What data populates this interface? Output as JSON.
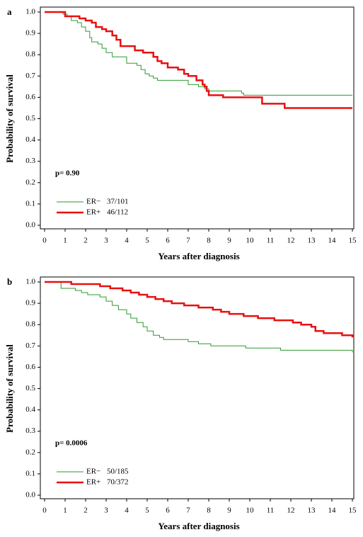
{
  "chart_data": [
    {
      "type": "line",
      "step": true,
      "label": "a",
      "ylabel": "Probability of survival",
      "xlabel": "Years after diagnosis",
      "annotation": "p= 0.90",
      "xlim": [
        0,
        15
      ],
      "ylim": [
        0,
        1
      ],
      "xticks": [
        0,
        1,
        2,
        3,
        4,
        5,
        6,
        7,
        8,
        9,
        10,
        11,
        12,
        13,
        14,
        15
      ],
      "yticks": [
        {
          "value": 0,
          "label": "0.0"
        },
        0.1,
        0.2,
        0.3,
        0.4,
        0.5,
        0.6,
        0.7,
        0.8,
        0.9,
        {
          "value": 1,
          "label": "1.0"
        }
      ],
      "series": [
        {
          "name": "ER−",
          "summary": "37/101",
          "color": "#2e9a2e",
          "width": 1,
          "x": [
            0,
            0.9,
            1.1,
            1.3,
            1.6,
            1.8,
            2.0,
            2.2,
            2.3,
            2.6,
            2.8,
            3.0,
            3.3,
            4.0,
            4.5,
            4.7,
            4.9,
            5.1,
            5.3,
            5.5,
            7.0,
            7.2,
            7.5,
            7.8,
            8.0,
            9.6,
            9.7,
            15
          ],
          "values": [
            1.0,
            0.99,
            0.98,
            0.96,
            0.95,
            0.93,
            0.91,
            0.88,
            0.86,
            0.85,
            0.83,
            0.81,
            0.79,
            0.76,
            0.75,
            0.73,
            0.71,
            0.7,
            0.69,
            0.68,
            0.66,
            0.66,
            0.65,
            0.64,
            0.63,
            0.62,
            0.61,
            0.61
          ]
        },
        {
          "name": "ER+",
          "summary": "46/112",
          "color": "#e81010",
          "width": 2.5,
          "x": [
            0,
            1.0,
            1.7,
            2.0,
            2.3,
            2.5,
            2.8,
            3.0,
            3.3,
            3.5,
            3.7,
            4.4,
            4.8,
            5.3,
            5.5,
            5.7,
            6.0,
            6.5,
            6.8,
            7.0,
            7.4,
            7.7,
            7.8,
            7.9,
            8.0,
            8.7,
            10.6,
            11.7,
            15
          ],
          "values": [
            1.0,
            0.98,
            0.97,
            0.96,
            0.95,
            0.93,
            0.92,
            0.91,
            0.89,
            0.87,
            0.84,
            0.82,
            0.81,
            0.79,
            0.77,
            0.76,
            0.74,
            0.73,
            0.71,
            0.7,
            0.68,
            0.66,
            0.65,
            0.63,
            0.61,
            0.6,
            0.57,
            0.55,
            0.55
          ]
        }
      ]
    },
    {
      "type": "line",
      "step": true,
      "label": "b",
      "ylabel": "Probability of survival",
      "xlabel": "Years after diagnosis",
      "annotation": "p= 0.0006",
      "xlim": [
        0,
        15
      ],
      "ylim": [
        0,
        1
      ],
      "xticks": [
        0,
        1,
        2,
        3,
        4,
        5,
        6,
        7,
        8,
        9,
        10,
        11,
        12,
        13,
        14,
        15
      ],
      "yticks": [
        {
          "value": 0,
          "label": "0.0"
        },
        0.1,
        0.2,
        0.3,
        0.4,
        0.5,
        0.6,
        0.7,
        0.8,
        0.9,
        {
          "value": 1,
          "label": "1.0"
        }
      ],
      "series": [
        {
          "name": "ER−",
          "summary": "50/185",
          "color": "#2e9a2e",
          "width": 1,
          "x": [
            0,
            0.8,
            1.5,
            1.8,
            2.1,
            2.7,
            3.0,
            3.3,
            3.6,
            4.0,
            4.2,
            4.5,
            4.8,
            5.0,
            5.3,
            5.6,
            5.8,
            7.0,
            7.5,
            8.1,
            9.8,
            11.5,
            15
          ],
          "values": [
            1.0,
            0.97,
            0.96,
            0.95,
            0.94,
            0.93,
            0.91,
            0.89,
            0.87,
            0.85,
            0.83,
            0.81,
            0.79,
            0.77,
            0.75,
            0.74,
            0.73,
            0.72,
            0.71,
            0.7,
            0.69,
            0.68,
            0.67
          ]
        },
        {
          "name": "ER+",
          "summary": "70/372",
          "color": "#e81010",
          "width": 2.5,
          "x": [
            0,
            1.3,
            2.7,
            3.2,
            3.8,
            4.2,
            4.6,
            5.0,
            5.4,
            5.8,
            6.2,
            6.8,
            7.5,
            8.2,
            8.6,
            9.0,
            9.7,
            10.4,
            11.2,
            12.1,
            12.5,
            13.0,
            13.2,
            13.6,
            14.5,
            15
          ],
          "values": [
            1.0,
            0.99,
            0.98,
            0.97,
            0.96,
            0.95,
            0.94,
            0.93,
            0.92,
            0.91,
            0.9,
            0.89,
            0.88,
            0.87,
            0.86,
            0.85,
            0.84,
            0.83,
            0.82,
            0.81,
            0.8,
            0.79,
            0.77,
            0.76,
            0.75,
            0.74
          ]
        }
      ]
    }
  ]
}
